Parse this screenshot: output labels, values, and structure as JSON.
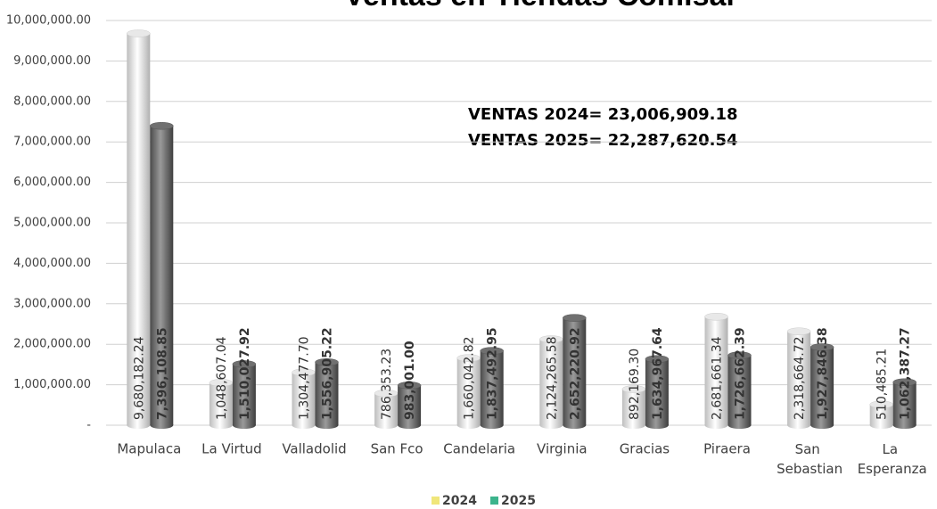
{
  "chart_data": {
    "type": "bar",
    "title": "Ventas en Tiendas Comisal",
    "categories": [
      "Mapulaca",
      "La Virtud",
      "Valladolid",
      "San Fco",
      "Candelaria",
      "Virginia",
      "Gracias",
      "Piraera",
      "San Sebastian",
      "La Esperanza"
    ],
    "series": [
      {
        "name": "2024",
        "color": "#e8e8e8",
        "legend_color": "#f0e67a",
        "values": [
          9680182.24,
          1048607.04,
          1304477.7,
          786353.23,
          1660042.82,
          2124265.58,
          892169.3,
          2681661.34,
          2318664.72,
          510485.21
        ],
        "value_labels": [
          "9,680,182.24",
          "1,048,607.04",
          "1,304,477.70",
          "786,353.23",
          "1,660,042.82",
          "2,124,265.58",
          "892,169.30",
          "2,681,661.34",
          "2,318,664.72",
          "510,485.21"
        ]
      },
      {
        "name": "2025",
        "color": "#707070",
        "legend_color": "#3cb48c",
        "values": [
          7396108.85,
          1510027.92,
          1556905.22,
          983001.0,
          1837492.95,
          2652220.92,
          1634967.64,
          1726662.39,
          1927846.38,
          1062387.27
        ],
        "value_labels": [
          "7,396,108.85",
          "1,510,027.92",
          "1,556,905.22",
          "983,001.00",
          "1,837,492.95",
          "2,652,220.92",
          "1,634,967.64",
          "1,726,662.39",
          "1,927,846.38",
          "1,062,387.27"
        ]
      }
    ],
    "annotations": [
      "VENTAS  2024= 23,006,909.18",
      "VENTAS  2025=  22,287,620.54"
    ],
    "ylim": [
      0,
      10000000
    ],
    "yticks": [
      {
        "value": 0,
        "label": "-"
      },
      {
        "value": 1000000,
        "label": "1,000,000.00"
      },
      {
        "value": 2000000,
        "label": "2,000,000.00"
      },
      {
        "value": 3000000,
        "label": "3,000,000.00"
      },
      {
        "value": 4000000,
        "label": "4,000,000.00"
      },
      {
        "value": 5000000,
        "label": "5,000,000.00"
      },
      {
        "value": 6000000,
        "label": "6,000,000.00"
      },
      {
        "value": 7000000,
        "label": "7,000,000.00"
      },
      {
        "value": 8000000,
        "label": "8,000,000.00"
      },
      {
        "value": 9000000,
        "label": "9,000,000.00"
      },
      {
        "value": 10000000,
        "label": "10,000,000.00"
      }
    ],
    "grid": true,
    "legend": "bottom"
  }
}
